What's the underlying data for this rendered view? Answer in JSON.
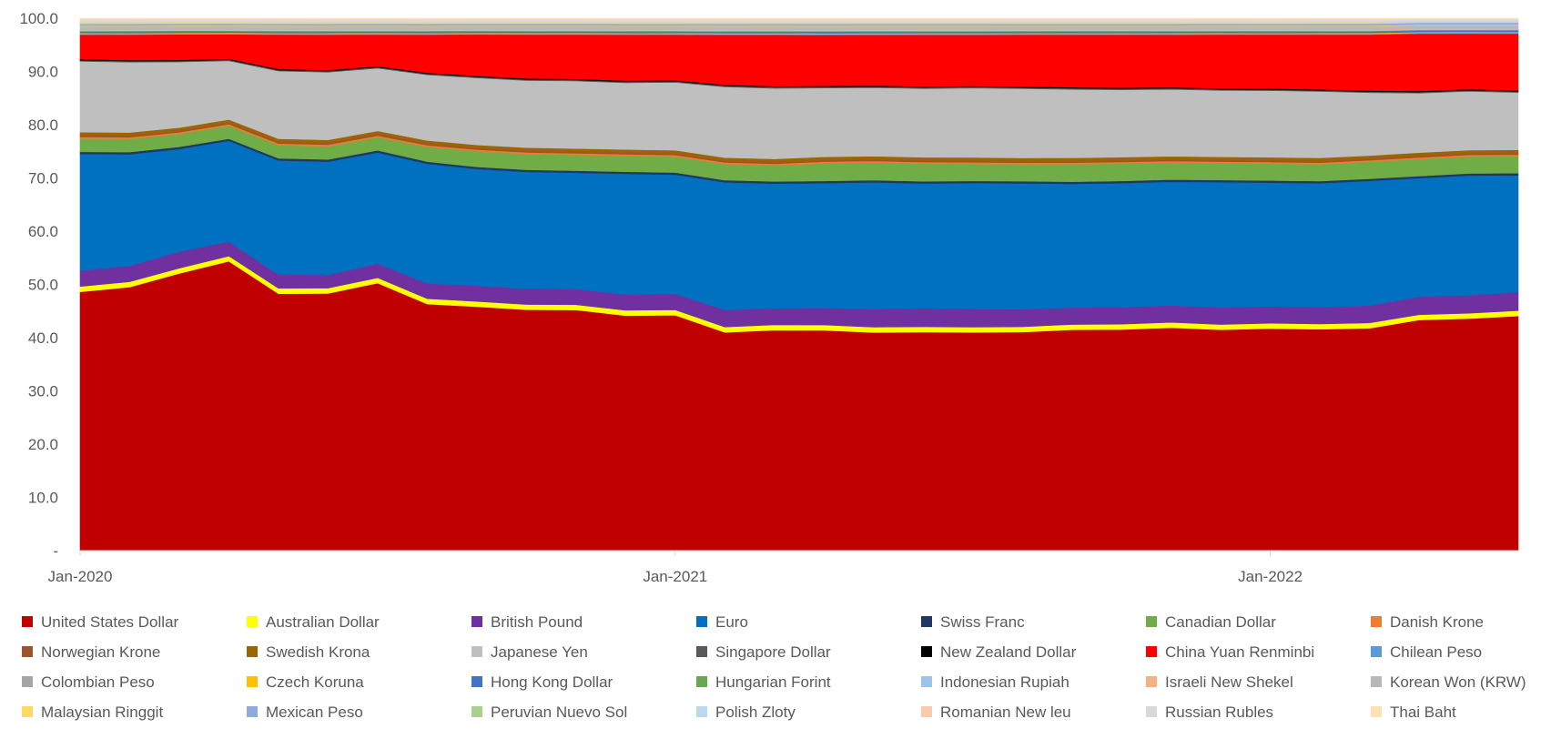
{
  "chart_data": {
    "type": "area",
    "stacked": true,
    "title": "",
    "xlabel": "",
    "ylabel": "",
    "ylim": [
      0,
      100
    ],
    "y_ticks": [
      "-",
      "10.0",
      "20.0",
      "30.0",
      "40.0",
      "50.0",
      "60.0",
      "70.0",
      "80.0",
      "90.0",
      "100.0"
    ],
    "x_ticks": [
      {
        "index": 0,
        "label": "Jan-2020"
      },
      {
        "index": 12,
        "label": "Jan-2021"
      },
      {
        "index": 24,
        "label": "Jan-2022"
      }
    ],
    "grid": false,
    "legend_position": "bottom",
    "x": [
      "Jan-2020",
      "Feb-2020",
      "Mar-2020",
      "Apr-2020",
      "May-2020",
      "Jun-2020",
      "Jul-2020",
      "Aug-2020",
      "Sep-2020",
      "Oct-2020",
      "Nov-2020",
      "Dec-2020",
      "Jan-2021",
      "Feb-2021",
      "Mar-2021",
      "Apr-2021",
      "May-2021",
      "Jun-2021",
      "Jul-2021",
      "Aug-2021",
      "Sep-2021",
      "Oct-2021",
      "Nov-2021",
      "Dec-2021",
      "Jan-2022",
      "Feb-2022",
      "Mar-2022",
      "Apr-2022",
      "May-2022",
      "Jun-2022"
    ],
    "series": [
      {
        "name": "United States Dollar",
        "color": "#C00000",
        "values": [
          48.6,
          49.8,
          53.2,
          55.7,
          48.6,
          48.6,
          50.8,
          46.6,
          46.6,
          45.6,
          45.6,
          44.4,
          44.4,
          40.7,
          41.2,
          41.0,
          40.8,
          41.0,
          40.9,
          41.3,
          41.6,
          41.7,
          42.0,
          41.9,
          42.0,
          42.0,
          42.1,
          43.4,
          43.8,
          44.2
        ]
      },
      {
        "name": "Australian Dollar",
        "color": "#FFFF00",
        "values": [
          1.0,
          1.0,
          1.0,
          1.0,
          1.0,
          1.0,
          1.0,
          1.0,
          1.0,
          1.0,
          1.0,
          1.0,
          1.0,
          1.0,
          1.0,
          1.0,
          1.0,
          1.0,
          1.0,
          1.0,
          1.0,
          1.0,
          1.0,
          1.0,
          1.0,
          1.0,
          1.0,
          1.0,
          1.0,
          1.0
        ]
      },
      {
        "name": "British Pound",
        "color": "#7030A0",
        "values": [
          3.0,
          3.0,
          3.2,
          2.8,
          2.6,
          2.5,
          2.7,
          2.9,
          3.0,
          3.0,
          3.0,
          3.0,
          3.0,
          3.2,
          3.1,
          3.2,
          3.4,
          3.5,
          3.4,
          3.3,
          3.2,
          3.2,
          3.2,
          3.2,
          3.2,
          3.2,
          3.3,
          3.4,
          3.4,
          3.5
        ]
      },
      {
        "name": "Euro",
        "color": "#0070C0",
        "values": [
          21.9,
          21.1,
          19.7,
          19.4,
          21.6,
          21.4,
          21.1,
          22.6,
          22.3,
          22.1,
          22.0,
          22.8,
          22.5,
          23.8,
          23.3,
          23.2,
          23.7,
          23.4,
          23.6,
          23.8,
          23.3,
          23.4,
          23.3,
          23.8,
          23.4,
          23.5,
          23.6,
          22.3,
          22.6,
          22.0
        ]
      },
      {
        "name": "Swiss Franc",
        "color": "#1F3864",
        "values": [
          0.4,
          0.4,
          0.4,
          0.4,
          0.4,
          0.4,
          0.4,
          0.4,
          0.4,
          0.4,
          0.4,
          0.4,
          0.4,
          0.4,
          0.4,
          0.4,
          0.4,
          0.4,
          0.4,
          0.4,
          0.4,
          0.4,
          0.4,
          0.4,
          0.4,
          0.4,
          0.4,
          0.4,
          0.4,
          0.4
        ]
      },
      {
        "name": "Canadian Dollar",
        "color": "#70AD47",
        "values": [
          2.5,
          2.5,
          2.5,
          2.5,
          2.5,
          2.5,
          2.5,
          2.8,
          3.0,
          3.0,
          3.0,
          3.0,
          3.0,
          3.0,
          3.0,
          3.3,
          3.3,
          3.3,
          3.2,
          3.2,
          3.3,
          3.3,
          3.2,
          3.2,
          3.2,
          3.2,
          3.2,
          3.2,
          3.2,
          3.2
        ]
      },
      {
        "name": "Danish Krone",
        "color": "#ED7D31",
        "values": [
          0.3,
          0.3,
          0.3,
          0.3,
          0.3,
          0.3,
          0.3,
          0.3,
          0.3,
          0.3,
          0.3,
          0.3,
          0.3,
          0.3,
          0.3,
          0.3,
          0.3,
          0.3,
          0.3,
          0.3,
          0.3,
          0.3,
          0.3,
          0.3,
          0.3,
          0.3,
          0.3,
          0.3,
          0.3,
          0.3
        ]
      },
      {
        "name": "Norwegian Krone",
        "color": "#A0522D",
        "values": [
          0.3,
          0.3,
          0.3,
          0.3,
          0.3,
          0.3,
          0.3,
          0.3,
          0.3,
          0.3,
          0.3,
          0.3,
          0.3,
          0.3,
          0.3,
          0.3,
          0.3,
          0.3,
          0.3,
          0.3,
          0.3,
          0.3,
          0.3,
          0.3,
          0.3,
          0.3,
          0.3,
          0.3,
          0.3,
          0.3
        ]
      },
      {
        "name": "Swedish Krona",
        "color": "#9C6500",
        "values": [
          0.6,
          0.6,
          0.6,
          0.6,
          0.6,
          0.6,
          0.6,
          0.6,
          0.6,
          0.6,
          0.6,
          0.6,
          0.6,
          0.6,
          0.6,
          0.6,
          0.6,
          0.6,
          0.6,
          0.6,
          0.6,
          0.6,
          0.6,
          0.6,
          0.6,
          0.6,
          0.6,
          0.6,
          0.6,
          0.6
        ]
      },
      {
        "name": "Japanese Yen",
        "color": "#BFBFBF",
        "values": [
          13.3,
          13.3,
          12.6,
          11.3,
          12.8,
          12.8,
          11.9,
          12.4,
          12.8,
          12.7,
          12.8,
          12.6,
          12.8,
          13.2,
          13.2,
          12.8,
          12.8,
          12.9,
          13.0,
          13.1,
          12.9,
          12.7,
          12.6,
          12.6,
          12.6,
          12.6,
          11.9,
          11.2,
          11.1,
          10.8
        ]
      },
      {
        "name": "Singapore Dollar",
        "color": "#595959",
        "values": [
          0.2,
          0.2,
          0.2,
          0.2,
          0.2,
          0.2,
          0.2,
          0.2,
          0.2,
          0.2,
          0.2,
          0.2,
          0.2,
          0.2,
          0.2,
          0.2,
          0.2,
          0.2,
          0.2,
          0.2,
          0.2,
          0.2,
          0.2,
          0.2,
          0.2,
          0.2,
          0.2,
          0.2,
          0.2,
          0.2
        ]
      },
      {
        "name": "New Zealand Dollar",
        "color": "#000000",
        "values": [
          0.2,
          0.2,
          0.2,
          0.2,
          0.2,
          0.2,
          0.2,
          0.2,
          0.2,
          0.2,
          0.2,
          0.2,
          0.2,
          0.2,
          0.2,
          0.2,
          0.2,
          0.2,
          0.2,
          0.2,
          0.2,
          0.2,
          0.2,
          0.2,
          0.2,
          0.2,
          0.2,
          0.2,
          0.2,
          0.2
        ]
      },
      {
        "name": "China Yuan Renminbi",
        "color": "#FF0000",
        "values": [
          4.6,
          4.8,
          4.9,
          4.7,
          6.5,
          6.7,
          6.0,
          7.2,
          7.9,
          8.3,
          8.4,
          8.7,
          8.6,
          9.3,
          9.6,
          9.5,
          9.5,
          9.7,
          9.6,
          9.8,
          9.9,
          10.0,
          9.9,
          10.2,
          10.2,
          10.4,
          10.6,
          10.8,
          10.5,
          10.7
        ]
      },
      {
        "name": "Chilean Peso",
        "color": "#5B9BD5",
        "values": [
          0.1,
          0.1,
          0.1,
          0.1,
          0.1,
          0.1,
          0.1,
          0.1,
          0.1,
          0.1,
          0.1,
          0.1,
          0.1,
          0.1,
          0.1,
          0.1,
          0.1,
          0.1,
          0.1,
          0.1,
          0.1,
          0.1,
          0.1,
          0.1,
          0.1,
          0.1,
          0.1,
          0.1,
          0.1,
          0.1
        ]
      },
      {
        "name": "Colombian Peso",
        "color": "#A5A5A5",
        "values": [
          0.1,
          0.1,
          0.1,
          0.1,
          0.1,
          0.1,
          0.1,
          0.1,
          0.1,
          0.1,
          0.1,
          0.1,
          0.1,
          0.1,
          0.1,
          0.1,
          0.1,
          0.1,
          0.1,
          0.1,
          0.1,
          0.1,
          0.1,
          0.1,
          0.1,
          0.1,
          0.1,
          0.1,
          0.1,
          0.1
        ]
      },
      {
        "name": "Czech Koruna",
        "color": "#FFC000",
        "values": [
          0.1,
          0.1,
          0.1,
          0.1,
          0.1,
          0.1,
          0.1,
          0.1,
          0.1,
          0.1,
          0.1,
          0.1,
          0.1,
          0.1,
          0.1,
          0.1,
          0.1,
          0.1,
          0.1,
          0.1,
          0.1,
          0.1,
          0.1,
          0.1,
          0.1,
          0.1,
          0.1,
          0.1,
          0.1,
          0.1
        ]
      },
      {
        "name": "Hong Kong Dollar",
        "color": "#4472C4",
        "values": [
          0.3,
          0.3,
          0.3,
          0.3,
          0.3,
          0.3,
          0.3,
          0.3,
          0.3,
          0.3,
          0.3,
          0.3,
          0.3,
          0.3,
          0.3,
          0.3,
          0.3,
          0.3,
          0.3,
          0.3,
          0.3,
          0.3,
          0.3,
          0.3,
          0.3,
          0.3,
          0.3,
          0.3,
          0.3,
          0.3
        ]
      },
      {
        "name": "Hungarian Forint",
        "color": "#6AA84F",
        "values": [
          0.1,
          0.1,
          0.1,
          0.1,
          0.1,
          0.1,
          0.1,
          0.1,
          0.1,
          0.1,
          0.1,
          0.1,
          0.1,
          0.1,
          0.1,
          0.1,
          0.1,
          0.1,
          0.1,
          0.1,
          0.1,
          0.1,
          0.1,
          0.1,
          0.1,
          0.1,
          0.1,
          0.1,
          0.1,
          0.1
        ]
      },
      {
        "name": "Indonesian Rupiah",
        "color": "#9DC3E6",
        "values": [
          0.1,
          0.1,
          0.1,
          0.1,
          0.1,
          0.1,
          0.1,
          0.1,
          0.1,
          0.1,
          0.1,
          0.1,
          0.1,
          0.1,
          0.1,
          0.1,
          0.1,
          0.1,
          0.1,
          0.1,
          0.1,
          0.1,
          0.1,
          0.1,
          0.1,
          0.1,
          0.1,
          0.1,
          0.1,
          0.1
        ]
      },
      {
        "name": "Israeli New Shekel",
        "color": "#F4B183",
        "values": [
          0.1,
          0.1,
          0.1,
          0.1,
          0.1,
          0.1,
          0.1,
          0.1,
          0.1,
          0.1,
          0.1,
          0.1,
          0.1,
          0.1,
          0.1,
          0.1,
          0.1,
          0.1,
          0.1,
          0.1,
          0.1,
          0.1,
          0.1,
          0.1,
          0.1,
          0.1,
          0.1,
          0.1,
          0.1,
          0.1
        ]
      },
      {
        "name": "Korean Won (KRW)",
        "color": "#B8B8B8",
        "values": [
          0.7,
          0.7,
          0.7,
          0.7,
          0.7,
          0.7,
          0.7,
          0.7,
          0.7,
          0.7,
          0.7,
          0.7,
          0.7,
          0.7,
          0.7,
          0.7,
          0.7,
          0.7,
          0.7,
          0.7,
          0.7,
          0.7,
          0.7,
          0.7,
          0.7,
          0.7,
          0.7,
          0.7,
          0.7,
          0.7
        ]
      },
      {
        "name": "Malaysian Ringgit",
        "color": "#FFD966",
        "values": [
          0.1,
          0.1,
          0.1,
          0.1,
          0.1,
          0.1,
          0.1,
          0.1,
          0.1,
          0.1,
          0.1,
          0.1,
          0.1,
          0.1,
          0.1,
          0.1,
          0.1,
          0.1,
          0.1,
          0.1,
          0.1,
          0.1,
          0.1,
          0.1,
          0.1,
          0.1,
          0.1,
          0.1,
          0.1,
          0.1
        ]
      },
      {
        "name": "Mexican Peso",
        "color": "#8FAADC",
        "values": [
          0.3,
          0.3,
          0.3,
          0.3,
          0.3,
          0.3,
          0.3,
          0.3,
          0.3,
          0.3,
          0.3,
          0.3,
          0.3,
          0.3,
          0.3,
          0.3,
          0.3,
          0.3,
          0.3,
          0.3,
          0.3,
          0.3,
          0.3,
          0.3,
          0.3,
          0.3,
          0.3,
          0.3,
          0.3,
          0.3
        ]
      },
      {
        "name": "Peruvian Nuevo Sol",
        "color": "#A9D18E",
        "values": [
          0.1,
          0.1,
          0.1,
          0.1,
          0.1,
          0.1,
          0.1,
          0.1,
          0.1,
          0.1,
          0.1,
          0.1,
          0.1,
          0.1,
          0.1,
          0.1,
          0.1,
          0.1,
          0.1,
          0.1,
          0.1,
          0.1,
          0.1,
          0.1,
          0.1,
          0.1,
          0.1,
          0.1,
          0.1,
          0.1
        ]
      },
      {
        "name": "Polish Zloty",
        "color": "#BDD7EE",
        "values": [
          0.2,
          0.2,
          0.2,
          0.2,
          0.2,
          0.2,
          0.2,
          0.2,
          0.2,
          0.2,
          0.2,
          0.2,
          0.2,
          0.2,
          0.2,
          0.2,
          0.2,
          0.2,
          0.2,
          0.2,
          0.2,
          0.2,
          0.2,
          0.2,
          0.2,
          0.2,
          0.2,
          0.2,
          0.2,
          0.2
        ]
      },
      {
        "name": "Romanian New leu",
        "color": "#F8CBAD",
        "values": [
          0.1,
          0.1,
          0.1,
          0.1,
          0.1,
          0.1,
          0.1,
          0.1,
          0.1,
          0.1,
          0.1,
          0.1,
          0.1,
          0.1,
          0.1,
          0.1,
          0.1,
          0.1,
          0.1,
          0.1,
          0.1,
          0.1,
          0.1,
          0.1,
          0.1,
          0.1,
          0.1,
          0.1,
          0.1,
          0.1
        ]
      },
      {
        "name": "Russian Rubles",
        "color": "#D9D9D9",
        "values": [
          0.5,
          0.5,
          0.5,
          0.5,
          0.5,
          0.5,
          0.5,
          0.5,
          0.5,
          0.5,
          0.5,
          0.5,
          0.5,
          0.5,
          0.5,
          0.5,
          0.5,
          0.5,
          0.5,
          0.5,
          0.5,
          0.5,
          0.5,
          0.5,
          0.5,
          0.5,
          0.5,
          0.3,
          0.3,
          0.3
        ]
      },
      {
        "name": "Thai Baht",
        "color": "#FFE0B3",
        "values": [
          0.2,
          0.2,
          0.2,
          0.2,
          0.2,
          0.2,
          0.2,
          0.2,
          0.2,
          0.2,
          0.2,
          0.2,
          0.2,
          0.2,
          0.2,
          0.2,
          0.2,
          0.2,
          0.2,
          0.2,
          0.2,
          0.2,
          0.2,
          0.2,
          0.2,
          0.2,
          0.2,
          0.2,
          0.2,
          0.2
        ]
      }
    ]
  }
}
